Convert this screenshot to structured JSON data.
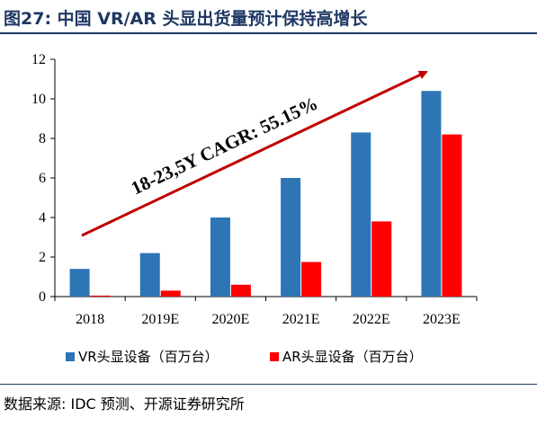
{
  "title": "图27:  中国 VR/AR 头显出货量预计保持高增长",
  "source": "数据来源:  IDC 预测、开源证券研究所",
  "colors": {
    "title": "#1f3864",
    "vr": "#2e75b6",
    "ar": "#ff0000",
    "arrow": "#c00000"
  },
  "annotation": "18-23,5Y CAGR: 55.15%",
  "chart_data": {
    "type": "bar",
    "categories": [
      "2018",
      "2019E",
      "2020E",
      "2021E",
      "2022E",
      "2023E"
    ],
    "series": [
      {
        "name": "VR头显设备（百万台）",
        "values": [
          1.4,
          2.2,
          4.0,
          6.0,
          8.3,
          10.4
        ]
      },
      {
        "name": "AR头显设备（百万台）",
        "values": [
          0.05,
          0.3,
          0.6,
          1.75,
          3.8,
          8.2
        ]
      }
    ],
    "ylim": [
      0,
      12
    ],
    "yticks": [
      0,
      2,
      4,
      6,
      8,
      10,
      12
    ],
    "legend": "bottom",
    "grid": false
  }
}
